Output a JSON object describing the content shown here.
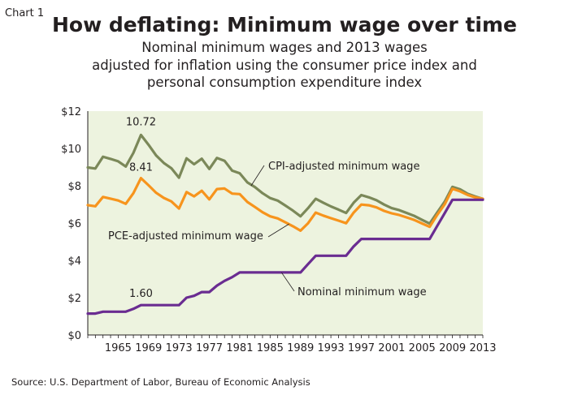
{
  "chart_label": "Chart 1",
  "title": "How deflating: Minimum wage over time",
  "subtitle_lines": [
    "Nominal minimum wages and 2013 wages",
    "adjusted for inflation using the consumer price index and",
    "personal consumption expenditure index"
  ],
  "source": "Source:  U.S. Department of Labor, Bureau of Economic Analysis",
  "chart_data": {
    "type": "line",
    "xlim": [
      1961,
      2013
    ],
    "ylim": [
      0,
      12
    ],
    "grid": false,
    "background": "#edf3df",
    "x_ticks": [
      1965,
      1969,
      1973,
      1977,
      1981,
      1985,
      1989,
      1993,
      1997,
      2001,
      2005,
      2009,
      2013
    ],
    "y_ticks": [
      0,
      2,
      4,
      6,
      8,
      10,
      12
    ],
    "y_tick_labels": [
      "$0",
      "$2",
      "$4",
      "$6",
      "$8",
      "$10",
      "$12"
    ],
    "series": [
      {
        "name": "CPI-adjusted minimum wage",
        "color": "#7b8859",
        "x": [
          1961,
          1962,
          1963,
          1964,
          1965,
          1966,
          1967,
          1968,
          1969,
          1970,
          1971,
          1972,
          1973,
          1974,
          1975,
          1976,
          1977,
          1978,
          1979,
          1980,
          1981,
          1982,
          1983,
          1984,
          1985,
          1986,
          1987,
          1988,
          1989,
          1990,
          1991,
          1992,
          1993,
          1994,
          1995,
          1996,
          1997,
          1998,
          1999,
          2000,
          2001,
          2002,
          2003,
          2004,
          2005,
          2006,
          2007,
          2008,
          2009,
          2010,
          2011,
          2012,
          2013
        ],
        "values": [
          8.98,
          8.92,
          9.55,
          9.44,
          9.31,
          9.03,
          9.76,
          10.72,
          10.19,
          9.62,
          9.22,
          8.94,
          8.43,
          9.47,
          9.15,
          9.45,
          8.9,
          9.49,
          9.34,
          8.81,
          8.67,
          8.18,
          7.93,
          7.6,
          7.34,
          7.2,
          6.94,
          6.67,
          6.36,
          6.8,
          7.3,
          7.09,
          6.89,
          6.72,
          6.54,
          7.09,
          7.5,
          7.38,
          7.22,
          6.99,
          6.8,
          6.69,
          6.54,
          6.38,
          6.17,
          5.97,
          6.57,
          7.16,
          7.94,
          7.81,
          7.57,
          7.42,
          7.3
        ]
      },
      {
        "name": "PCE-adjusted minimum wage",
        "color": "#f7941d",
        "x": [
          1961,
          1962,
          1963,
          1964,
          1965,
          1966,
          1967,
          1968,
          1969,
          1970,
          1971,
          1972,
          1973,
          1974,
          1975,
          1976,
          1977,
          1978,
          1979,
          1980,
          1981,
          1982,
          1983,
          1984,
          1985,
          1986,
          1987,
          1988,
          1989,
          1990,
          1991,
          1992,
          1993,
          1994,
          1995,
          1996,
          1997,
          1998,
          1999,
          2000,
          2001,
          2002,
          2003,
          2004,
          2005,
          2006,
          2007,
          2008,
          2009,
          2010,
          2011,
          2012,
          2013
        ],
        "values": [
          6.96,
          6.9,
          7.4,
          7.31,
          7.21,
          7.03,
          7.6,
          8.41,
          8.02,
          7.62,
          7.35,
          7.16,
          6.78,
          7.66,
          7.43,
          7.73,
          7.27,
          7.82,
          7.85,
          7.58,
          7.55,
          7.13,
          6.86,
          6.58,
          6.36,
          6.25,
          6.04,
          5.83,
          5.59,
          5.99,
          6.56,
          6.4,
          6.26,
          6.13,
          5.99,
          6.56,
          6.99,
          6.95,
          6.84,
          6.65,
          6.52,
          6.43,
          6.3,
          6.16,
          5.98,
          5.8,
          6.44,
          7.02,
          7.84,
          7.7,
          7.51,
          7.38,
          7.3
        ]
      },
      {
        "name": "Nominal minimum wage",
        "color": "#6a2c91",
        "x": [
          1961,
          1962,
          1963,
          1964,
          1965,
          1966,
          1967,
          1968,
          1969,
          1970,
          1971,
          1972,
          1973,
          1974,
          1975,
          1976,
          1977,
          1978,
          1979,
          1980,
          1981,
          1982,
          1983,
          1984,
          1985,
          1986,
          1987,
          1988,
          1989,
          1990,
          1991,
          1992,
          1993,
          1994,
          1995,
          1996,
          1997,
          1998,
          1999,
          2000,
          2001,
          2002,
          2003,
          2004,
          2005,
          2006,
          2007,
          2008,
          2009,
          2010,
          2011,
          2012,
          2013
        ],
        "values": [
          1.15,
          1.15,
          1.25,
          1.25,
          1.25,
          1.25,
          1.4,
          1.6,
          1.6,
          1.6,
          1.6,
          1.6,
          1.6,
          2.0,
          2.1,
          2.3,
          2.3,
          2.65,
          2.9,
          3.1,
          3.35,
          3.35,
          3.35,
          3.35,
          3.35,
          3.35,
          3.35,
          3.35,
          3.35,
          3.8,
          4.25,
          4.25,
          4.25,
          4.25,
          4.25,
          4.75,
          5.15,
          5.15,
          5.15,
          5.15,
          5.15,
          5.15,
          5.15,
          5.15,
          5.15,
          5.15,
          5.85,
          6.55,
          7.25,
          7.25,
          7.25,
          7.25,
          7.25
        ]
      }
    ],
    "annotations": [
      {
        "text": "10.72",
        "x": 1968,
        "y": 10.72,
        "series": "CPI-adjusted minimum wage"
      },
      {
        "text": "8.41",
        "x": 1968,
        "y": 8.41,
        "series": "PCE-adjusted minimum wage"
      },
      {
        "text": "1.60",
        "x": 1968,
        "y": 1.6,
        "series": "Nominal minimum wage"
      }
    ],
    "series_labels": [
      {
        "text": "CPI-adjusted minimum wage",
        "points_to": [
          1982.5,
          8.0
        ]
      },
      {
        "text": "PCE-adjusted minimum wage",
        "points_to": [
          1987.5,
          5.95
        ]
      },
      {
        "text": "Nominal minimum wage",
        "points_to": [
          1986.5,
          3.35
        ]
      }
    ]
  }
}
